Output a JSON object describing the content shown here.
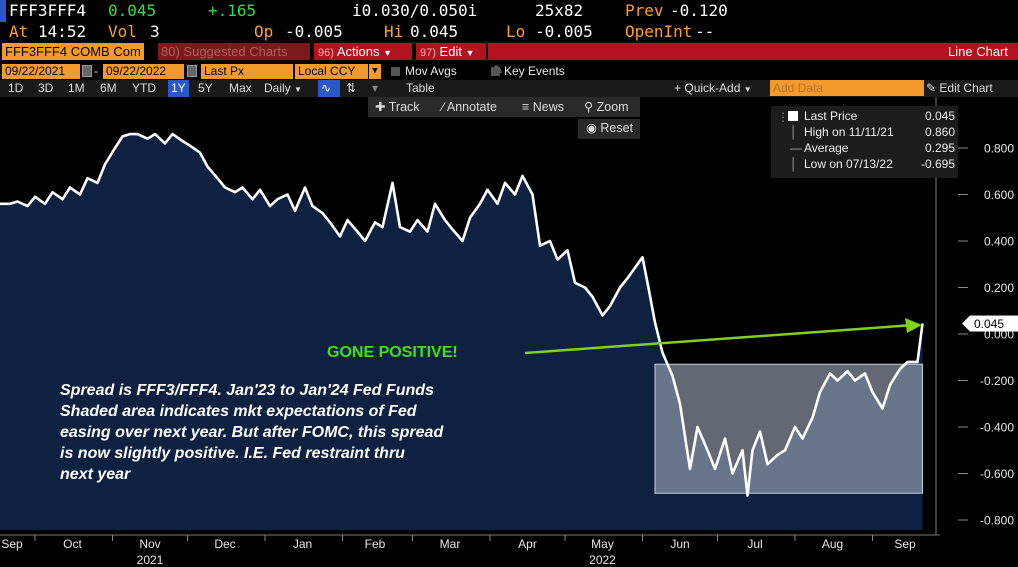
{
  "header": {
    "ticker": "FFF3FFF4",
    "last": "0.045",
    "change": "+.165",
    "range_label": "i0.030/0.050i",
    "size": "25x82",
    "prev_label": "Prev",
    "prev_value": "-0.120",
    "time_label": "At",
    "time": "14:52",
    "vol_label": "Vol",
    "vol": "3",
    "open_label": "Op",
    "open": "-0.005",
    "high_label": "Hi",
    "high": "0.045",
    "low_label": "Lo",
    "low": "-0.005",
    "oi_label": "OpenInt",
    "oi": "--"
  },
  "menu": {
    "security": "FFF3FFF4 COMB Com",
    "suggested": "Suggested Charts",
    "suggested_num": "80",
    "actions_num": "96",
    "actions": "Actions",
    "edit_num": "97",
    "edit": "Edit",
    "chart_type": "Line Chart"
  },
  "controls": {
    "start_date": "09/22/2021",
    "end_date": "09/22/2022",
    "field": "Last Px",
    "currency": "Local CCY",
    "mov_avgs": "Mov Avgs",
    "key_events": "Key Events"
  },
  "periods": [
    "1D",
    "3D",
    "1M",
    "6M",
    "YTD",
    "1Y",
    "5Y",
    "Max"
  ],
  "selected_period": "1Y",
  "frequency": "Daily",
  "table_label": "Table",
  "quick_add": "Quick-Add",
  "add_data_placeholder": "Add Data",
  "edit_chart": "Edit Chart",
  "tools": {
    "track": "Track",
    "annotate": "Annotate",
    "news": "News",
    "zoom": "Zoom",
    "reset": "Reset"
  },
  "legend": {
    "last_label": "Last Price",
    "last_value": "0.045",
    "high_label": "High on 11/11/21",
    "high_value": "0.860",
    "avg_label": "Average",
    "avg_value": "0.295",
    "low_label": "Low on 07/13/22",
    "low_value": "-0.695"
  },
  "annotation": {
    "gone_positive": "GONE POSITIVE!",
    "note": "Spread is FFF3/FFF4.  Jan'23 to Jan'24 Fed Funds\nShaded area indicates mkt expectations of Fed\neasing over next year.  But after FOMC, this spread\nis now slightly positive.  I.E. Fed restraint thru\nnext year"
  },
  "colors": {
    "background": "#000000",
    "area_fill": "#0e2140",
    "line": "#ffffff",
    "header_orange": "#ff9d2b",
    "header_green": "#2fdd4c",
    "accent_red": "#b3121f",
    "arrow_green": "#7fd11b",
    "gone_text": "#3ee016"
  },
  "chart_data": {
    "type": "area",
    "x_tick_labels": [
      "Sep",
      "Oct",
      "Nov",
      "Dec",
      "Jan",
      "Feb",
      "Mar",
      "Apr",
      "May",
      "Jun",
      "Jul",
      "Aug",
      "Sep"
    ],
    "year_labels": [
      {
        "label": "2021",
        "under": "Nov"
      },
      {
        "label": "2022",
        "under": "May"
      }
    ],
    "y_ticks": [
      0.8,
      0.6,
      0.4,
      0.2,
      0.0,
      -0.2,
      -0.4,
      -0.6,
      -0.8
    ],
    "y_tick_labels": [
      "0.800",
      "0.600",
      "0.400",
      "0.200",
      "0.000",
      "-0.200",
      "-0.400",
      "-0.600",
      "-0.800"
    ],
    "ylim": [
      -0.85,
      1.0
    ],
    "xlim": [
      "2021-09-17",
      "2022-09-26"
    ],
    "last_value_label": "0.045",
    "series": [
      {
        "values": [
          [
            "2021-09-21",
            0.56
          ],
          [
            "2021-09-24",
            0.57
          ],
          [
            "2021-09-28",
            0.55
          ],
          [
            "2021-10-01",
            0.59
          ],
          [
            "2021-10-05",
            0.56
          ],
          [
            "2021-10-08",
            0.61
          ],
          [
            "2021-10-12",
            0.58
          ],
          [
            "2021-10-15",
            0.63
          ],
          [
            "2021-10-19",
            0.6
          ],
          [
            "2021-10-22",
            0.67
          ],
          [
            "2021-10-26",
            0.65
          ],
          [
            "2021-10-29",
            0.73
          ],
          [
            "2021-11-02",
            0.8
          ],
          [
            "2021-11-05",
            0.85
          ],
          [
            "2021-11-08",
            0.86
          ],
          [
            "2021-11-11",
            0.86
          ],
          [
            "2021-11-15",
            0.84
          ],
          [
            "2021-11-18",
            0.86
          ],
          [
            "2021-11-22",
            0.82
          ],
          [
            "2021-11-25",
            0.86
          ],
          [
            "2021-11-29",
            0.83
          ],
          [
            "2021-12-02",
            0.81
          ],
          [
            "2021-12-06",
            0.78
          ],
          [
            "2021-12-09",
            0.72
          ],
          [
            "2021-12-13",
            0.67
          ],
          [
            "2021-12-16",
            0.63
          ],
          [
            "2021-12-20",
            0.61
          ],
          [
            "2021-12-23",
            0.63
          ],
          [
            "2021-12-27",
            0.58
          ],
          [
            "2021-12-30",
            0.62
          ],
          [
            "2022-01-03",
            0.55
          ],
          [
            "2022-01-06",
            0.58
          ],
          [
            "2022-01-10",
            0.6
          ],
          [
            "2022-01-13",
            0.53
          ],
          [
            "2022-01-17",
            0.63
          ],
          [
            "2022-01-20",
            0.55
          ],
          [
            "2022-01-24",
            0.52
          ],
          [
            "2022-01-27",
            0.48
          ],
          [
            "2022-01-31",
            0.42
          ],
          [
            "2022-02-03",
            0.49
          ],
          [
            "2022-02-07",
            0.44
          ],
          [
            "2022-02-10",
            0.4
          ],
          [
            "2022-02-14",
            0.48
          ],
          [
            "2022-02-17",
            0.46
          ],
          [
            "2022-02-21",
            0.65
          ],
          [
            "2022-02-24",
            0.46
          ],
          [
            "2022-02-28",
            0.44
          ],
          [
            "2022-03-03",
            0.49
          ],
          [
            "2022-03-07",
            0.44
          ],
          [
            "2022-03-10",
            0.56
          ],
          [
            "2022-03-14",
            0.49
          ],
          [
            "2022-03-17",
            0.45
          ],
          [
            "2022-03-21",
            0.4
          ],
          [
            "2022-03-24",
            0.5
          ],
          [
            "2022-03-28",
            0.56
          ],
          [
            "2022-03-31",
            0.62
          ],
          [
            "2022-04-04",
            0.56
          ],
          [
            "2022-04-07",
            0.65
          ],
          [
            "2022-04-11",
            0.6
          ],
          [
            "2022-04-14",
            0.68
          ],
          [
            "2022-04-18",
            0.6
          ],
          [
            "2022-04-21",
            0.38
          ],
          [
            "2022-04-25",
            0.4
          ],
          [
            "2022-04-28",
            0.32
          ],
          [
            "2022-05-02",
            0.36
          ],
          [
            "2022-05-05",
            0.22
          ],
          [
            "2022-05-09",
            0.2
          ],
          [
            "2022-05-12",
            0.16
          ],
          [
            "2022-05-16",
            0.08
          ],
          [
            "2022-05-19",
            0.12
          ],
          [
            "2022-05-23",
            0.2
          ],
          [
            "2022-05-26",
            0.24
          ],
          [
            "2022-05-30",
            0.3
          ],
          [
            "2022-06-01",
            0.33
          ],
          [
            "2022-06-03",
            0.22
          ],
          [
            "2022-06-06",
            0.05
          ],
          [
            "2022-06-09",
            -0.08
          ],
          [
            "2022-06-13",
            -0.18
          ],
          [
            "2022-06-16",
            -0.3
          ],
          [
            "2022-06-20",
            -0.58
          ],
          [
            "2022-06-23",
            -0.4
          ],
          [
            "2022-06-27",
            -0.5
          ],
          [
            "2022-06-30",
            -0.58
          ],
          [
            "2022-07-04",
            -0.45
          ],
          [
            "2022-07-07",
            -0.6
          ],
          [
            "2022-07-11",
            -0.5
          ],
          [
            "2022-07-13",
            -0.695
          ],
          [
            "2022-07-15",
            -0.5
          ],
          [
            "2022-07-18",
            -0.42
          ],
          [
            "2022-07-21",
            -0.56
          ],
          [
            "2022-07-25",
            -0.52
          ],
          [
            "2022-07-28",
            -0.5
          ],
          [
            "2022-08-01",
            -0.4
          ],
          [
            "2022-08-04",
            -0.45
          ],
          [
            "2022-08-08",
            -0.36
          ],
          [
            "2022-08-11",
            -0.25
          ],
          [
            "2022-08-15",
            -0.17
          ],
          [
            "2022-08-18",
            -0.2
          ],
          [
            "2022-08-22",
            -0.16
          ],
          [
            "2022-08-25",
            -0.2
          ],
          [
            "2022-08-29",
            -0.17
          ],
          [
            "2022-09-01",
            -0.25
          ],
          [
            "2022-09-05",
            -0.32
          ],
          [
            "2022-09-08",
            -0.22
          ],
          [
            "2022-09-12",
            -0.15
          ],
          [
            "2022-09-15",
            -0.12
          ],
          [
            "2022-09-19",
            -0.12
          ],
          [
            "2022-09-21",
            0.045
          ]
        ]
      }
    ]
  }
}
